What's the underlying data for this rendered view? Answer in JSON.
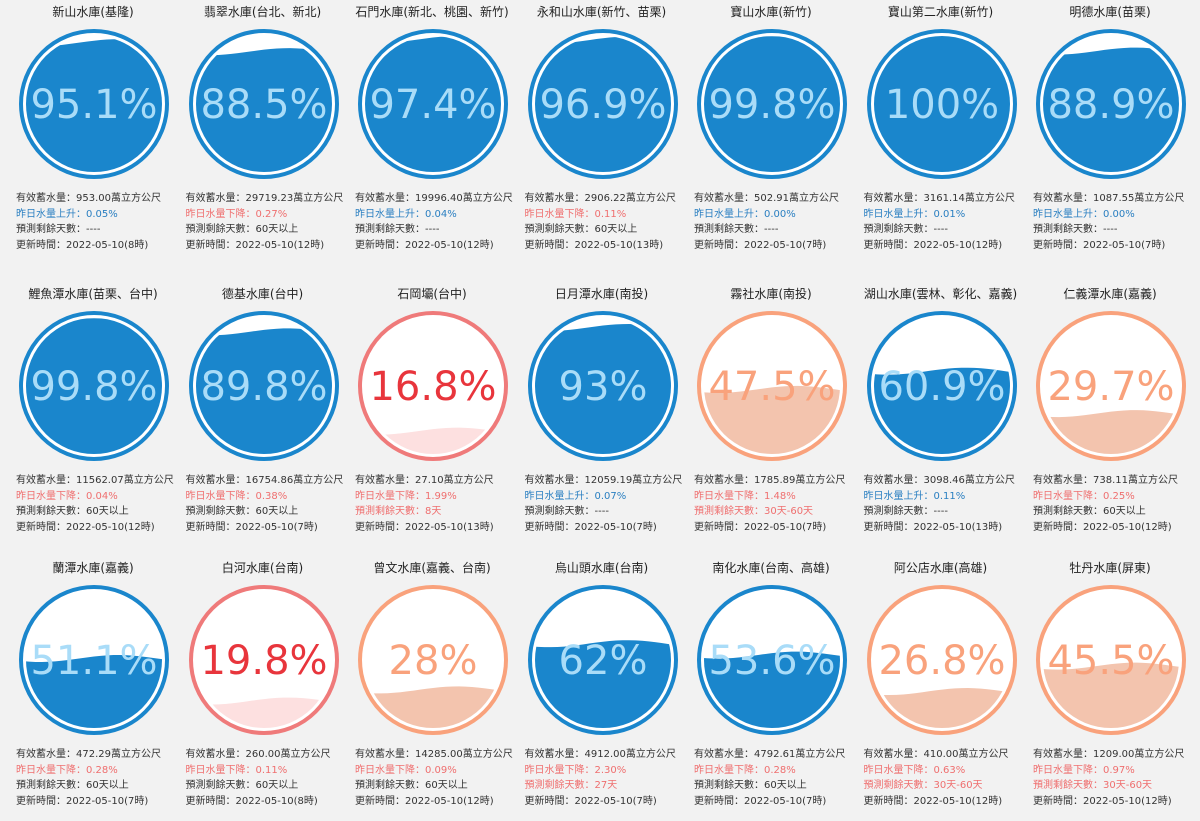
{
  "colors": {
    "blue_ring": "#1a86cc",
    "blue_fill": "#1a86cc",
    "blue_text_on_fill": "#a9dcf8",
    "blue_text_dark": "#15507f",
    "orange_ring": "#f9a27c",
    "orange_fill": "#f3c4ae",
    "orange_text": "#f9a27c",
    "red_ring": "#ef7a7a",
    "red_fill": "#fde0e0",
    "red_text": "#e8353c",
    "up_text": "#2a7fc1",
    "down_text": "#ef6f6f"
  },
  "reservoirs": [
    {
      "name": "新山水庫(基隆)",
      "percent": 95.1,
      "percent_text": "95.1%",
      "theme": "blue",
      "storage": "有效蓄水量：953.00萬立方公尺",
      "change": "昨日水量上升：0.05%",
      "change_dir": "up",
      "days": "預測剩餘天數：----",
      "days_warn": false,
      "updated": "更新時間：2022-05-10(8時)"
    },
    {
      "name": "翡翠水庫(台北、新北)",
      "percent": 88.5,
      "percent_text": "88.5%",
      "theme": "blue",
      "storage": "有效蓄水量：29719.23萬立方公尺",
      "change": "昨日水量下降：0.27%",
      "change_dir": "down",
      "days": "預測剩餘天數：60天以上",
      "days_warn": false,
      "updated": "更新時間：2022-05-10(12時)"
    },
    {
      "name": "石門水庫(新北、桃園、新竹)",
      "percent": 97.4,
      "percent_text": "97.4%",
      "theme": "blue",
      "storage": "有效蓄水量：19996.40萬立方公尺",
      "change": "昨日水量上升：0.04%",
      "change_dir": "up",
      "days": "預測剩餘天數：----",
      "days_warn": false,
      "updated": "更新時間：2022-05-10(12時)"
    },
    {
      "name": "永和山水庫(新竹、苗栗)",
      "percent": 96.9,
      "percent_text": "96.9%",
      "theme": "blue",
      "storage": "有效蓄水量：2906.22萬立方公尺",
      "change": "昨日水量下降：0.11%",
      "change_dir": "down",
      "days": "預測剩餘天數：60天以上",
      "days_warn": false,
      "updated": "更新時間：2022-05-10(13時)"
    },
    {
      "name": "寶山水庫(新竹)",
      "percent": 99.8,
      "percent_text": "99.8%",
      "theme": "blue",
      "storage": "有效蓄水量：502.91萬立方公尺",
      "change": "昨日水量上升：0.00%",
      "change_dir": "up",
      "days": "預測剩餘天數：----",
      "days_warn": false,
      "updated": "更新時間：2022-05-10(7時)"
    },
    {
      "name": "寶山第二水庫(新竹)",
      "percent": 100,
      "percent_text": "100%",
      "theme": "blue",
      "storage": "有效蓄水量：3161.14萬立方公尺",
      "change": "昨日水量上升：0.01%",
      "change_dir": "up",
      "days": "預測剩餘天數：----",
      "days_warn": false,
      "updated": "更新時間：2022-05-10(12時)"
    },
    {
      "name": "明德水庫(苗栗)",
      "percent": 88.9,
      "percent_text": "88.9%",
      "theme": "blue",
      "storage": "有效蓄水量：1087.55萬立方公尺",
      "change": "昨日水量上升：0.00%",
      "change_dir": "up",
      "days": "預測剩餘天數：----",
      "days_warn": false,
      "updated": "更新時間：2022-05-10(7時)"
    },
    {
      "name": "鯉魚潭水庫(苗栗、台中)",
      "percent": 99.8,
      "percent_text": "99.8%",
      "theme": "blue",
      "storage": "有效蓄水量：11562.07萬立方公尺",
      "change": "昨日水量下降：0.04%",
      "change_dir": "down",
      "days": "預測剩餘天數：60天以上",
      "days_warn": false,
      "updated": "更新時間：2022-05-10(12時)"
    },
    {
      "name": "德基水庫(台中)",
      "percent": 89.8,
      "percent_text": "89.8%",
      "theme": "blue",
      "storage": "有效蓄水量：16754.86萬立方公尺",
      "change": "昨日水量下降：0.38%",
      "change_dir": "down",
      "days": "預測剩餘天數：60天以上",
      "days_warn": false,
      "updated": "更新時間：2022-05-10(7時)"
    },
    {
      "name": "石岡壩(台中)",
      "percent": 16.8,
      "percent_text": "16.8%",
      "theme": "red",
      "storage": "有效蓄水量：27.10萬立方公尺",
      "change": "昨日水量下降：1.99%",
      "change_dir": "down",
      "days": "預測剩餘天數：8天",
      "days_warn": true,
      "updated": "更新時間：2022-05-10(13時)"
    },
    {
      "name": "日月潭水庫(南投)",
      "percent": 93,
      "percent_text": "93%",
      "theme": "blue",
      "storage": "有效蓄水量：12059.19萬立方公尺",
      "change": "昨日水量上升：0.07%",
      "change_dir": "up",
      "days": "預測剩餘天數：----",
      "days_warn": false,
      "updated": "更新時間：2022-05-10(7時)"
    },
    {
      "name": "霧社水庫(南投)",
      "percent": 47.5,
      "percent_text": "47.5%",
      "theme": "orange",
      "storage": "有效蓄水量：1785.89萬立方公尺",
      "change": "昨日水量下降：1.48%",
      "change_dir": "down",
      "days": "預測剩餘天數：30天-60天",
      "days_warn": true,
      "updated": "更新時間：2022-05-10(7時)"
    },
    {
      "name": "湖山水庫(雲林、彰化、嘉義)",
      "percent": 60.9,
      "percent_text": "60.9%",
      "theme": "blue",
      "storage": "有效蓄水量：3098.46萬立方公尺",
      "change": "昨日水量上升：0.11%",
      "change_dir": "up",
      "days": "預測剩餘天數：----",
      "days_warn": false,
      "updated": "更新時間：2022-05-10(13時)"
    },
    {
      "name": "仁義潭水庫(嘉義)",
      "percent": 29.7,
      "percent_text": "29.7%",
      "theme": "orange",
      "storage": "有效蓄水量：738.11萬立方公尺",
      "change": "昨日水量下降：0.25%",
      "change_dir": "down",
      "days": "預測剩餘天數：60天以上",
      "days_warn": false,
      "updated": "更新時間：2022-05-10(12時)"
    },
    {
      "name": "蘭潭水庫(嘉義)",
      "percent": 51.1,
      "percent_text": "51.1%",
      "theme": "blue",
      "storage": "有效蓄水量：472.29萬立方公尺",
      "change": "昨日水量下降：0.28%",
      "change_dir": "down",
      "days": "預測剩餘天數：60天以上",
      "days_warn": false,
      "updated": "更新時間：2022-05-10(7時)"
    },
    {
      "name": "白河水庫(台南)",
      "percent": 19.8,
      "percent_text": "19.8%",
      "theme": "red",
      "storage": "有效蓄水量：260.00萬立方公尺",
      "change": "昨日水量下降：0.11%",
      "change_dir": "down",
      "days": "預測剩餘天數：60天以上",
      "days_warn": false,
      "updated": "更新時間：2022-05-10(8時)"
    },
    {
      "name": "曾文水庫(嘉義、台南)",
      "percent": 28,
      "percent_text": "28%",
      "theme": "orange",
      "storage": "有效蓄水量：14285.00萬立方公尺",
      "change": "昨日水量下降：0.09%",
      "change_dir": "down",
      "days": "預測剩餘天數：60天以上",
      "days_warn": false,
      "updated": "更新時間：2022-05-10(12時)"
    },
    {
      "name": "烏山頭水庫(台南)",
      "percent": 62,
      "percent_text": "62%",
      "theme": "blue",
      "storage": "有效蓄水量：4912.00萬立方公尺",
      "change": "昨日水量下降：2.30%",
      "change_dir": "down",
      "days": "預測剩餘天數：27天",
      "days_warn": true,
      "updated": "更新時間：2022-05-10(7時)"
    },
    {
      "name": "南化水庫(台南、高雄)",
      "percent": 53.6,
      "percent_text": "53.6%",
      "theme": "blue",
      "storage": "有效蓄水量：4792.61萬立方公尺",
      "change": "昨日水量下降：0.28%",
      "change_dir": "down",
      "days": "預測剩餘天數：60天以上",
      "days_warn": false,
      "updated": "更新時間：2022-05-10(7時)"
    },
    {
      "name": "阿公店水庫(高雄)",
      "percent": 26.8,
      "percent_text": "26.8%",
      "theme": "orange",
      "storage": "有效蓄水量：410.00萬立方公尺",
      "change": "昨日水量下降：0.63%",
      "change_dir": "down",
      "days": "預測剩餘天數：30天-60天",
      "days_warn": true,
      "updated": "更新時間：2022-05-10(12時)"
    },
    {
      "name": "牡丹水庫(屏東)",
      "percent": 45.5,
      "percent_text": "45.5%",
      "theme": "orange",
      "storage": "有效蓄水量：1209.00萬立方公尺",
      "change": "昨日水量下降：0.97%",
      "change_dir": "down",
      "days": "預測剩餘天數：30天-60天",
      "days_warn": true,
      "updated": "更新時間：2022-05-10(12時)"
    }
  ]
}
